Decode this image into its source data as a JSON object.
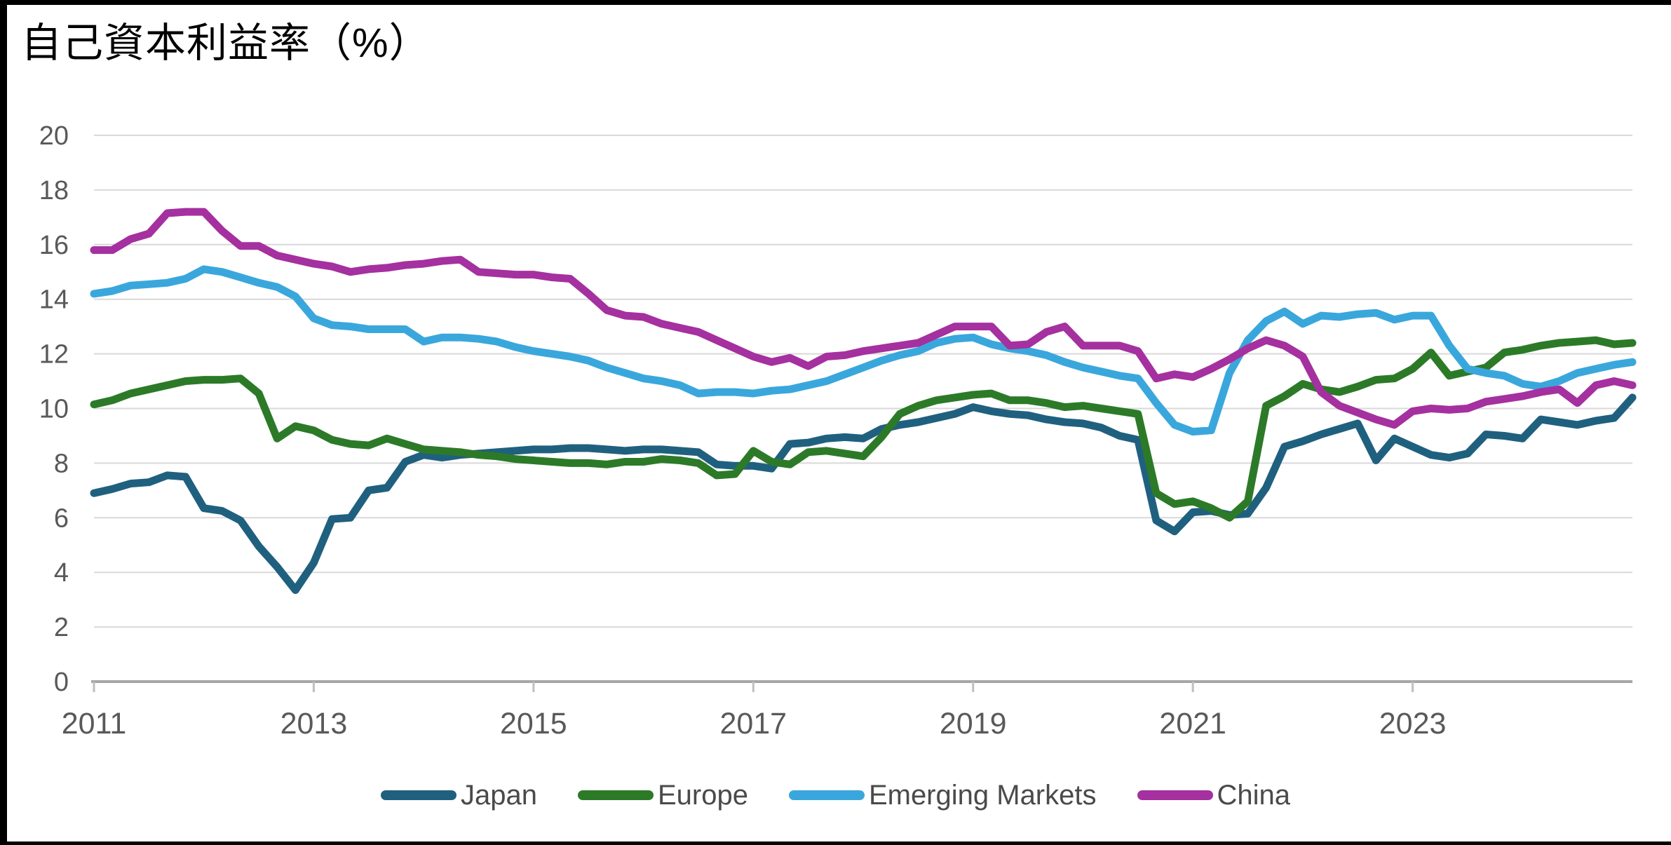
{
  "frame": {
    "border_color": "#000000"
  },
  "chart_data": {
    "type": "line",
    "title": "自己資本利益率（%）",
    "xlabel": "",
    "ylabel": "",
    "grid": "horizontal",
    "legend_position": "bottom",
    "ylim": [
      0,
      20
    ],
    "y_ticks": [
      0,
      2,
      4,
      6,
      8,
      10,
      12,
      14,
      16,
      18,
      20
    ],
    "x_tick_years": [
      2011,
      2013,
      2015,
      2017,
      2019,
      2021,
      2023
    ],
    "x_tick_labels": [
      "2011",
      "2013",
      "2015",
      "2017",
      "2019",
      "2021",
      "2023"
    ],
    "x_start": 2011,
    "x_end": 2025,
    "points_per_year": 6,
    "colors": {
      "grid": "#d9d9d9",
      "zero_axis": "#a6a6a6",
      "tick": "#bfbfbf",
      "axis_text": "#595959",
      "legend_text": "#4a4a4a",
      "title_text": "#000000"
    },
    "series": [
      {
        "name": "Japan",
        "color": "#20607f",
        "values": [
          6.9,
          7.05,
          7.25,
          7.3,
          7.55,
          7.5,
          6.35,
          6.25,
          5.9,
          4.95,
          4.2,
          3.35,
          4.35,
          5.95,
          6.0,
          7.0,
          7.1,
          8.05,
          8.3,
          8.2,
          8.3,
          8.35,
          8.4,
          8.45,
          8.5,
          8.5,
          8.55,
          8.55,
          8.5,
          8.45,
          8.5,
          8.5,
          8.45,
          8.4,
          7.95,
          7.9,
          7.9,
          7.8,
          8.7,
          8.75,
          8.9,
          8.95,
          8.9,
          9.25,
          9.4,
          9.5,
          9.65,
          9.8,
          10.05,
          9.9,
          9.8,
          9.75,
          9.6,
          9.5,
          9.45,
          9.3,
          9.0,
          8.85,
          5.9,
          5.5,
          6.2,
          6.25,
          6.1,
          6.15,
          7.1,
          8.6,
          8.8,
          9.05,
          9.25,
          9.45,
          8.1,
          8.9,
          8.6,
          8.3,
          8.2,
          8.35,
          9.05,
          9.0,
          8.9,
          9.6,
          9.5,
          9.4,
          9.55,
          9.65,
          10.4
        ]
      },
      {
        "name": "Europe",
        "color": "#2c7a28",
        "values": [
          10.15,
          10.3,
          10.55,
          10.7,
          10.85,
          11.0,
          11.05,
          11.05,
          11.1,
          10.55,
          8.9,
          9.35,
          9.2,
          8.85,
          8.7,
          8.65,
          8.9,
          8.7,
          8.5,
          8.45,
          8.4,
          8.3,
          8.25,
          8.15,
          8.1,
          8.05,
          8.0,
          8.0,
          7.95,
          8.05,
          8.05,
          8.15,
          8.1,
          8.0,
          7.55,
          7.6,
          8.45,
          8.05,
          7.95,
          8.4,
          8.45,
          8.35,
          8.25,
          8.95,
          9.8,
          10.1,
          10.3,
          10.4,
          10.5,
          10.55,
          10.3,
          10.3,
          10.2,
          10.05,
          10.1,
          10.0,
          9.9,
          9.8,
          6.9,
          6.5,
          6.6,
          6.35,
          6.0,
          6.6,
          10.1,
          10.45,
          10.9,
          10.7,
          10.6,
          10.8,
          11.05,
          11.1,
          11.45,
          12.05,
          11.2,
          11.35,
          11.5,
          12.05,
          12.15,
          12.3,
          12.4,
          12.45,
          12.5,
          12.35,
          12.4
        ]
      },
      {
        "name": "Emerging Markets",
        "color": "#3aa7dc",
        "values": [
          14.2,
          14.3,
          14.5,
          14.55,
          14.6,
          14.75,
          15.1,
          15.0,
          14.8,
          14.6,
          14.45,
          14.1,
          13.3,
          13.05,
          13.0,
          12.9,
          12.9,
          12.9,
          12.45,
          12.6,
          12.6,
          12.55,
          12.45,
          12.25,
          12.1,
          12.0,
          11.9,
          11.75,
          11.5,
          11.3,
          11.1,
          11.0,
          10.85,
          10.55,
          10.6,
          10.6,
          10.55,
          10.65,
          10.7,
          10.85,
          11.0,
          11.25,
          11.5,
          11.75,
          11.95,
          12.1,
          12.4,
          12.55,
          12.6,
          12.35,
          12.2,
          12.1,
          11.95,
          11.7,
          11.5,
          11.35,
          11.2,
          11.1,
          10.2,
          9.4,
          9.15,
          9.2,
          11.3,
          12.5,
          13.2,
          13.55,
          13.1,
          13.4,
          13.35,
          13.45,
          13.5,
          13.25,
          13.4,
          13.4,
          12.3,
          11.45,
          11.3,
          11.2,
          10.9,
          10.8,
          11.0,
          11.3,
          11.45,
          11.6,
          11.7
        ]
      },
      {
        "name": "China",
        "color": "#a5309f",
        "values": [
          15.8,
          15.8,
          16.2,
          16.4,
          17.15,
          17.2,
          17.2,
          16.5,
          15.95,
          15.95,
          15.6,
          15.45,
          15.3,
          15.2,
          15.0,
          15.1,
          15.15,
          15.25,
          15.3,
          15.4,
          15.45,
          15.0,
          14.95,
          14.9,
          14.9,
          14.8,
          14.75,
          14.2,
          13.6,
          13.4,
          13.35,
          13.1,
          12.95,
          12.8,
          12.5,
          12.2,
          11.9,
          11.7,
          11.85,
          11.55,
          11.9,
          11.95,
          12.1,
          12.2,
          12.3,
          12.4,
          12.7,
          13.0,
          13.0,
          13.0,
          12.3,
          12.35,
          12.8,
          13.0,
          12.3,
          12.3,
          12.3,
          12.1,
          11.1,
          11.25,
          11.15,
          11.45,
          11.8,
          12.2,
          12.5,
          12.3,
          11.9,
          10.6,
          10.1,
          9.85,
          9.6,
          9.4,
          9.9,
          10.0,
          9.95,
          10.0,
          10.25,
          10.35,
          10.45,
          10.6,
          10.7,
          10.2,
          10.85,
          11.0,
          10.85
        ]
      }
    ]
  }
}
